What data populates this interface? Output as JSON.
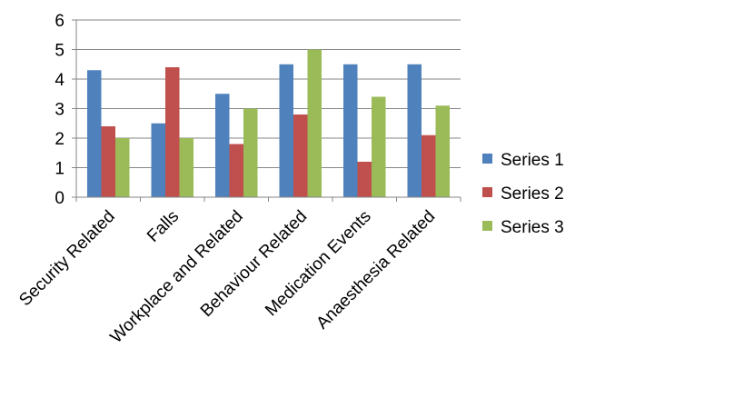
{
  "chart_data": {
    "type": "bar",
    "categories": [
      "Security Related",
      "Falls",
      "Workplace and Related",
      "Behaviour Related",
      "Medication Events",
      "Anaesthesia Related"
    ],
    "series": [
      {
        "name": "Series 1",
        "values": [
          4.3,
          2.5,
          3.5,
          4.5,
          4.5,
          4.5
        ],
        "color": "#4F81BD"
      },
      {
        "name": "Series 2",
        "values": [
          2.4,
          4.4,
          1.8,
          2.8,
          1.2,
          2.1
        ],
        "color": "#C0504D"
      },
      {
        "name": "Series 3",
        "values": [
          2.0,
          2.0,
          3.0,
          5.0,
          3.4,
          3.1
        ],
        "color": "#9BBB59"
      }
    ],
    "ylim": [
      0,
      6
    ],
    "yticks": [
      "0",
      "1",
      "2",
      "3",
      "4",
      "5",
      "6"
    ],
    "grid": true,
    "legend_position": "right"
  }
}
